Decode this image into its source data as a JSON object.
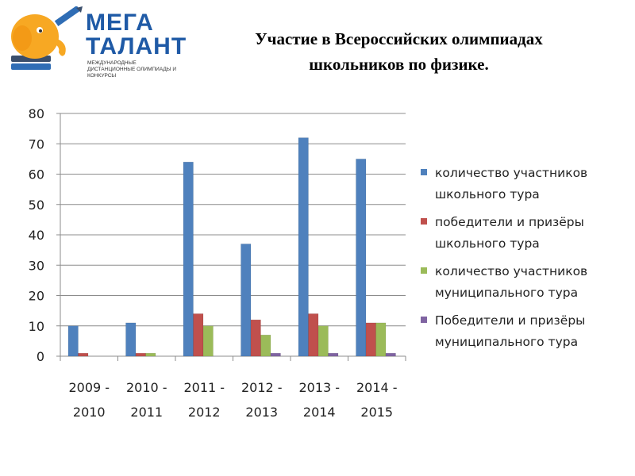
{
  "logo": {
    "line1": "МЕГА",
    "line2": "ТАЛАНТ",
    "subtitle": "МЕЖДУНАРОДНЫЕ ДИСТАНЦИОННЫЕ ОЛИМПИАДЫ И КОНКУРСЫ",
    "icon": "elephant-pencil-logo"
  },
  "title": {
    "line1": "Участие в Всероссийских олимпиадах",
    "line2": "школьников по физике."
  },
  "chart_data": {
    "type": "bar",
    "categories": [
      "2009 - 2010",
      "2010 - 2011",
      "2011 - 2012",
      "2012 - 2013",
      "2013 - 2014",
      "2014 - 2015"
    ],
    "category_lines": [
      [
        "2009 -",
        "2010"
      ],
      [
        "2010 -",
        "2011"
      ],
      [
        "2011 -",
        "2012"
      ],
      [
        "2012 -",
        "2013"
      ],
      [
        "2013 -",
        "2014"
      ],
      [
        "2014 -",
        "2015"
      ]
    ],
    "series": [
      {
        "name": "количество участников школьного тура",
        "name_lines": [
          "количество участников",
          "школьного тура"
        ],
        "color": "#4f81bd",
        "values": [
          10,
          11,
          64,
          37,
          72,
          65
        ]
      },
      {
        "name": "победители и призёры школьного тура",
        "name_lines": [
          "победители и призёры",
          "школьного тура"
        ],
        "color": "#c0504d",
        "values": [
          1,
          1,
          14,
          12,
          14,
          11
        ]
      },
      {
        "name": "количество участников муниципального тура",
        "name_lines": [
          "количество участников",
          "муниципального тура"
        ],
        "color": "#9bbb59",
        "values": [
          0,
          1,
          10,
          7,
          10,
          11
        ]
      },
      {
        "name": "Победители и призёры муниципального тура",
        "name_lines": [
          "Победители и призёры",
          "муниципального тура"
        ],
        "color": "#8064a2",
        "values": [
          0,
          0,
          0,
          1,
          1,
          1
        ]
      }
    ],
    "ylim": [
      0,
      80
    ],
    "yticks": [
      0,
      10,
      20,
      30,
      40,
      50,
      60,
      70,
      80
    ],
    "grid": true,
    "legend": "right",
    "xlabel": "",
    "ylabel": ""
  }
}
